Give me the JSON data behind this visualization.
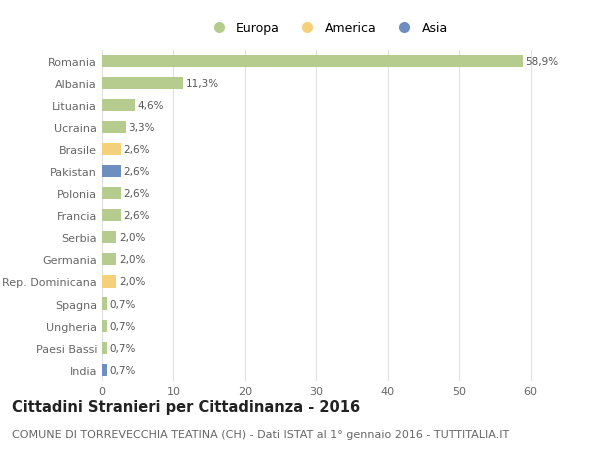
{
  "categories": [
    "Romania",
    "Albania",
    "Lituania",
    "Ucraina",
    "Brasile",
    "Pakistan",
    "Polonia",
    "Francia",
    "Serbia",
    "Germania",
    "Rep. Dominicana",
    "Spagna",
    "Ungheria",
    "Paesi Bassi",
    "India"
  ],
  "values": [
    58.9,
    11.3,
    4.6,
    3.3,
    2.6,
    2.6,
    2.6,
    2.6,
    2.0,
    2.0,
    2.0,
    0.7,
    0.7,
    0.7,
    0.7
  ],
  "labels": [
    "58,9%",
    "11,3%",
    "4,6%",
    "3,3%",
    "2,6%",
    "2,6%",
    "2,6%",
    "2,6%",
    "2,0%",
    "2,0%",
    "2,0%",
    "0,7%",
    "0,7%",
    "0,7%",
    "0,7%"
  ],
  "colors": [
    "#b5cc8e",
    "#b5cc8e",
    "#b5cc8e",
    "#b5cc8e",
    "#f5d07a",
    "#6d8ebf",
    "#b5cc8e",
    "#b5cc8e",
    "#b5cc8e",
    "#b5cc8e",
    "#f5d07a",
    "#b5cc8e",
    "#b5cc8e",
    "#b5cc8e",
    "#6d8ebf"
  ],
  "legend_labels": [
    "Europa",
    "America",
    "Asia"
  ],
  "legend_colors": [
    "#b5cc8e",
    "#f5d07a",
    "#6d8ebf"
  ],
  "title": "Cittadini Stranieri per Cittadinanza - 2016",
  "subtitle": "COMUNE DI TORREVECCHIA TEATINA (CH) - Dati ISTAT al 1° gennaio 2016 - TUTTITALIA.IT",
  "xlim": [
    0,
    63
  ],
  "xticks": [
    0,
    10,
    20,
    30,
    40,
    50,
    60
  ],
  "bg_color": "#ffffff",
  "grid_color": "#e0e0e0",
  "title_fontsize": 10.5,
  "subtitle_fontsize": 8,
  "label_fontsize": 7.5,
  "tick_fontsize": 8,
  "legend_fontsize": 9
}
